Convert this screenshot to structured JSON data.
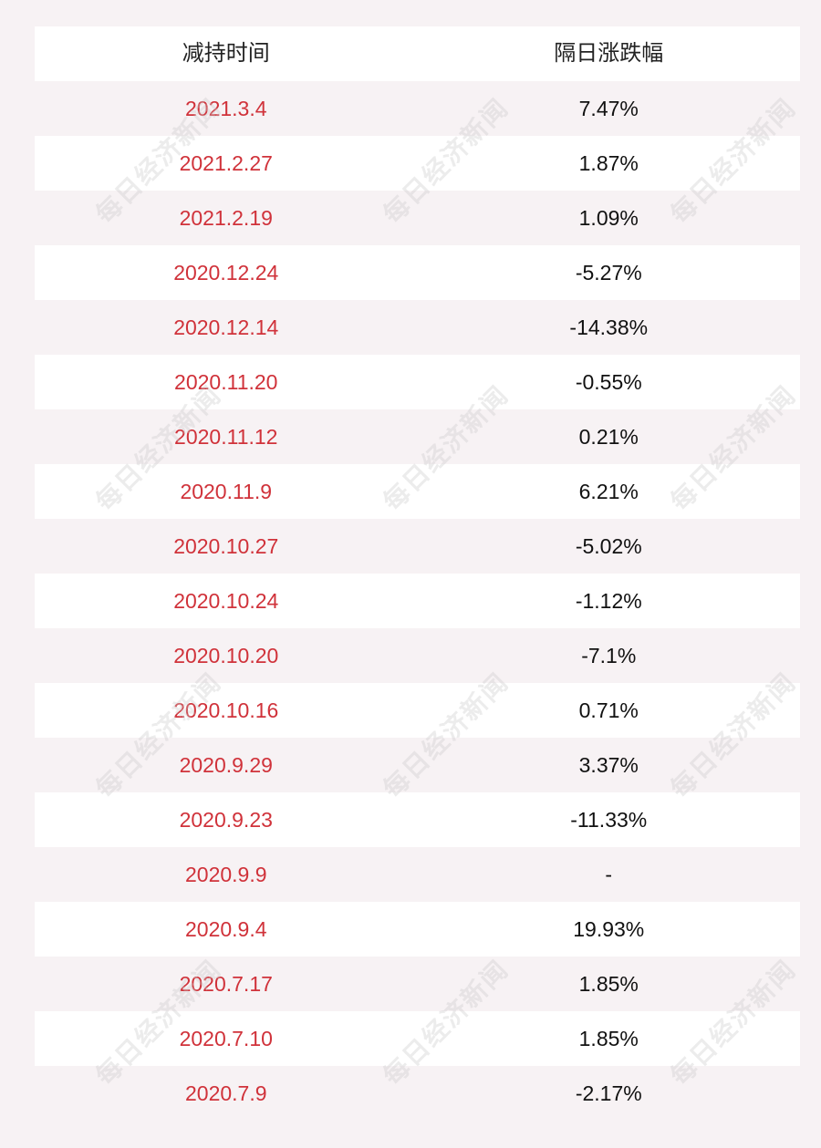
{
  "header": {
    "date_label": "减持时间",
    "change_label": "隔日涨跌幅"
  },
  "rows": [
    {
      "date": "2021.3.4",
      "change": "7.47%"
    },
    {
      "date": "2021.2.27",
      "change": "1.87%"
    },
    {
      "date": "2021.2.19",
      "change": "1.09%"
    },
    {
      "date": "2020.12.24",
      "change": "-5.27%"
    },
    {
      "date": "2020.12.14",
      "change": "-14.38%"
    },
    {
      "date": "2020.11.20",
      "change": "-0.55%"
    },
    {
      "date": "2020.11.12",
      "change": "0.21%"
    },
    {
      "date": "2020.11.9",
      "change": "6.21%"
    },
    {
      "date": "2020.10.27",
      "change": "-5.02%"
    },
    {
      "date": "2020.10.24",
      "change": "-1.12%"
    },
    {
      "date": "2020.10.20",
      "change": "-7.1%"
    },
    {
      "date": "2020.10.16",
      "change": "0.71%"
    },
    {
      "date": "2020.9.29",
      "change": "3.37%"
    },
    {
      "date": "2020.9.23",
      "change": "-11.33%"
    },
    {
      "date": "2020.9.9",
      "change": "-"
    },
    {
      "date": "2020.9.4",
      "change": "19.93%"
    },
    {
      "date": "2020.7.17",
      "change": "1.85%"
    },
    {
      "date": "2020.7.10",
      "change": "1.85%"
    },
    {
      "date": "2020.7.9",
      "change": "-2.17%"
    }
  ],
  "watermark": {
    "text": "每日经济新闻"
  },
  "colors": {
    "date_text": "#d0323a",
    "change_text": "#111111",
    "stripe": "#ffffff",
    "background": "#f7f2f4"
  }
}
